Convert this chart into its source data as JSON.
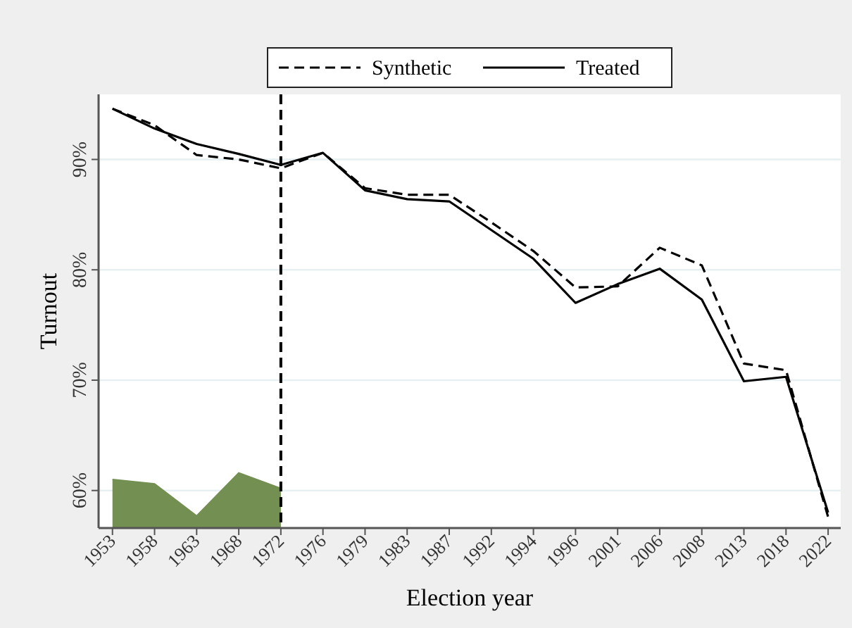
{
  "chart_data": {
    "type": "line",
    "xlabel": "Election year",
    "ylabel": "Turnout",
    "categories": [
      "1953",
      "1958",
      "1963",
      "1968",
      "1972",
      "1976",
      "1979",
      "1983",
      "1987",
      "1992",
      "1994",
      "1996",
      "2001",
      "2006",
      "2008",
      "2013",
      "2018",
      "2022"
    ],
    "series": [
      {
        "name": "Synthetic",
        "color": "#000000",
        "line_style": "dashed",
        "values": [
          94.6,
          93.1,
          90.4,
          90.0,
          89.2,
          90.6,
          87.4,
          86.8,
          86.8,
          84.3,
          81.7,
          78.4,
          78.5,
          82.0,
          80.4,
          71.5,
          70.9,
          57.6
        ]
      },
      {
        "name": "Treated",
        "color": "#000000",
        "line_style": "solid",
        "values": [
          94.6,
          92.8,
          91.4,
          90.5,
          89.5,
          90.6,
          87.2,
          86.4,
          86.2,
          83.6,
          81.0,
          77.0,
          78.7,
          80.1,
          77.3,
          69.9,
          70.3,
          58.0
        ]
      },
      {
        "type": "area",
        "color": "#738f52",
        "values": [
          61.0,
          60.6,
          57.7,
          61.6,
          60.2,
          null,
          null,
          null,
          null,
          null,
          null,
          null,
          null,
          null,
          null,
          null,
          null,
          null
        ]
      }
    ],
    "ylim": [
      56.6,
      95.9
    ],
    "yticks": [
      {
        "value": 60,
        "label": "60%"
      },
      {
        "value": 70,
        "label": "70%"
      },
      {
        "value": 80,
        "label": "80%"
      },
      {
        "value": 90,
        "label": "90%"
      }
    ],
    "grid": "y",
    "legend": "top",
    "ref_lines": [
      {
        "axis": "x",
        "value": "1972",
        "line_style": "dashed",
        "color": "#000000"
      }
    ]
  }
}
